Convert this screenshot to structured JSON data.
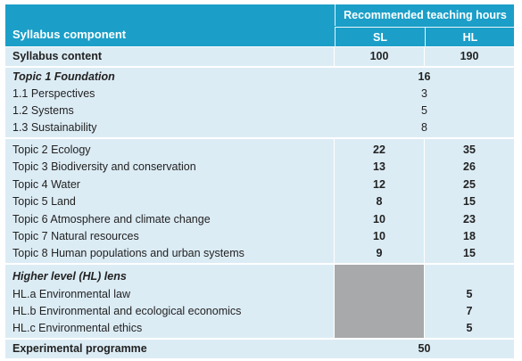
{
  "header": {
    "column_label": "Syllabus component",
    "hours_label": "Recommended teaching hours",
    "sl": "SL",
    "hl": "HL"
  },
  "content": {
    "label": "Syllabus content",
    "sl": "100",
    "hl": "190"
  },
  "foundation": {
    "title": "Topic 1 Foundation",
    "total": "16",
    "items": [
      {
        "label": "1.1 Perspectives",
        "value": "3"
      },
      {
        "label": "1.2 Systems",
        "value": "5"
      },
      {
        "label": "1.3 Sustainability",
        "value": "8"
      }
    ]
  },
  "topics": [
    {
      "label": "Topic 2 Ecology",
      "sl": "22",
      "hl": "35"
    },
    {
      "label": "Topic 3 Biodiversity and conservation",
      "sl": "13",
      "hl": "26"
    },
    {
      "label": "Topic 4 Water",
      "sl": "12",
      "hl": "25"
    },
    {
      "label": "Topic 5 Land",
      "sl": "8",
      "hl": "15"
    },
    {
      "label": "Topic 6 Atmosphere and climate change",
      "sl": "10",
      "hl": "23"
    },
    {
      "label": "Topic 7 Natural resources",
      "sl": "10",
      "hl": "18"
    },
    {
      "label": "Topic 8 Human populations and urban systems",
      "sl": "9",
      "hl": "15"
    }
  ],
  "hl_lens": {
    "title": "Higher level (HL) lens",
    "items": [
      {
        "label": "HL.a Environmental law",
        "hl": "5"
      },
      {
        "label": "HL.b Environmental and ecological economics",
        "hl": "7"
      },
      {
        "label": "HL.c Environmental ethics",
        "hl": "5"
      }
    ]
  },
  "experimental": {
    "label": "Experimental programme",
    "value": "50"
  }
}
